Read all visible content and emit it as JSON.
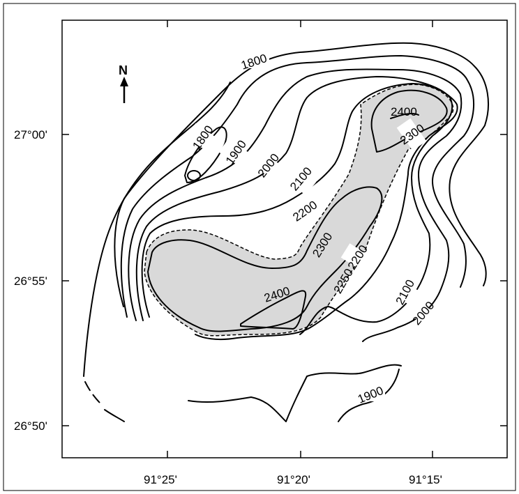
{
  "north_label": "N",
  "axes": {
    "lat_ticks": [
      "27°00'",
      "26°55'",
      "26°50'"
    ],
    "lon_ticks": [
      "91°25'",
      "91°20'",
      "91°15'"
    ]
  },
  "contour_labels": {
    "c1800_top": "1800",
    "c1800_left": "1800",
    "c1900_left": "1900",
    "c2000_mid": "2000",
    "c2100_mid": "2100",
    "c2200_mid": "2200",
    "c2300_mid": "2300",
    "c2400_left": "2400",
    "c2250": "2250",
    "c2200_right": "2200",
    "c2400_right": "2400",
    "c2300_right": "2300",
    "c2100_right": "2100",
    "c2000_right": "2000",
    "c1900_bottom": "1900"
  },
  "colors": {
    "shade": "#d9d9d9",
    "line": "#000000",
    "frame": "#000000"
  }
}
